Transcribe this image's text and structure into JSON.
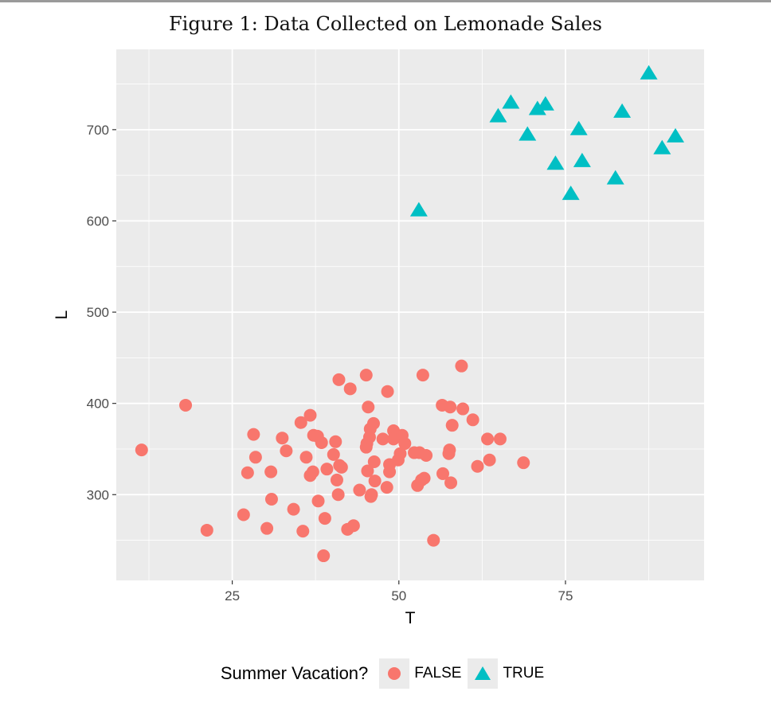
{
  "title": "Figure 1: Data Collected on Lemonade Sales",
  "chart_data": {
    "type": "scatter",
    "title": "Figure 1: Data Collected on Lemonade Sales",
    "xlabel": "T",
    "ylabel": "L",
    "xlim": [
      7.6,
      95.8
    ],
    "ylim": [
      206,
      788
    ],
    "xticks": [
      25,
      50,
      75
    ],
    "yticks": [
      300,
      400,
      500,
      600,
      700
    ],
    "grid": true,
    "legend": {
      "title": "Summer Vacation?",
      "position": "bottom",
      "entries": [
        "FALSE",
        "TRUE"
      ]
    },
    "series": [
      {
        "name": "FALSE",
        "color": "#F8766D",
        "marker": "circle",
        "points": [
          [
            11.4,
            349
          ],
          [
            18.0,
            398
          ],
          [
            21.2,
            261
          ],
          [
            26.7,
            278
          ],
          [
            27.3,
            324
          ],
          [
            28.2,
            366
          ],
          [
            28.5,
            341
          ],
          [
            30.2,
            263
          ],
          [
            30.8,
            325
          ],
          [
            30.9,
            295
          ],
          [
            32.5,
            362
          ],
          [
            33.1,
            348
          ],
          [
            34.2,
            284
          ],
          [
            35.3,
            379
          ],
          [
            35.6,
            260
          ],
          [
            36.1,
            341
          ],
          [
            36.7,
            387
          ],
          [
            36.7,
            321
          ],
          [
            37.1,
            325
          ],
          [
            37.2,
            365
          ],
          [
            37.8,
            364
          ],
          [
            37.9,
            293
          ],
          [
            38.4,
            357
          ],
          [
            38.7,
            233
          ],
          [
            38.9,
            274
          ],
          [
            39.2,
            328
          ],
          [
            40.2,
            344
          ],
          [
            40.5,
            358
          ],
          [
            40.7,
            316
          ],
          [
            40.9,
            300
          ],
          [
            41.1,
            332
          ],
          [
            41.0,
            426
          ],
          [
            41.4,
            330
          ],
          [
            42.3,
            262
          ],
          [
            42.7,
            416
          ],
          [
            43.2,
            266
          ],
          [
            44.1,
            305
          ],
          [
            45.1,
            431
          ],
          [
            45.1,
            352
          ],
          [
            45.2,
            356
          ],
          [
            45.3,
            326
          ],
          [
            45.6,
            363
          ],
          [
            45.4,
            396
          ],
          [
            45.7,
            372
          ],
          [
            45.8,
            298
          ],
          [
            45.9,
            300
          ],
          [
            46.2,
            378
          ],
          [
            46.3,
            336
          ],
          [
            46.4,
            315
          ],
          [
            47.6,
            361
          ],
          [
            48.2,
            308
          ],
          [
            48.3,
            413
          ],
          [
            48.6,
            333
          ],
          [
            48.6,
            325
          ],
          [
            49.2,
            370
          ],
          [
            49.2,
            361
          ],
          [
            49.9,
            338
          ],
          [
            50.2,
            345
          ],
          [
            50.5,
            365
          ],
          [
            50.9,
            356
          ],
          [
            52.3,
            346
          ],
          [
            52.8,
            310
          ],
          [
            53.1,
            346
          ],
          [
            53.4,
            316
          ],
          [
            53.6,
            431
          ],
          [
            53.8,
            318
          ],
          [
            54.1,
            343
          ],
          [
            55.2,
            250
          ],
          [
            56.5,
            398
          ],
          [
            56.6,
            323
          ],
          [
            57.5,
            345
          ],
          [
            57.6,
            349
          ],
          [
            57.7,
            396
          ],
          [
            57.8,
            313
          ],
          [
            58.0,
            376
          ],
          [
            59.4,
            441
          ],
          [
            59.6,
            394
          ],
          [
            61.1,
            382
          ],
          [
            61.8,
            331
          ],
          [
            63.3,
            361
          ],
          [
            63.6,
            338
          ],
          [
            65.2,
            361
          ],
          [
            68.7,
            335
          ]
        ]
      },
      {
        "name": "TRUE",
        "color": "#00BFC4",
        "marker": "triangle",
        "points": [
          [
            53.0,
            612
          ],
          [
            64.9,
            715
          ],
          [
            66.8,
            730
          ],
          [
            69.3,
            695
          ],
          [
            70.8,
            723
          ],
          [
            72.0,
            728
          ],
          [
            73.5,
            663
          ],
          [
            75.8,
            630
          ],
          [
            77.0,
            701
          ],
          [
            77.5,
            666
          ],
          [
            82.5,
            647
          ],
          [
            83.5,
            720
          ],
          [
            87.5,
            762
          ],
          [
            89.5,
            680
          ],
          [
            91.5,
            693
          ]
        ]
      }
    ]
  }
}
